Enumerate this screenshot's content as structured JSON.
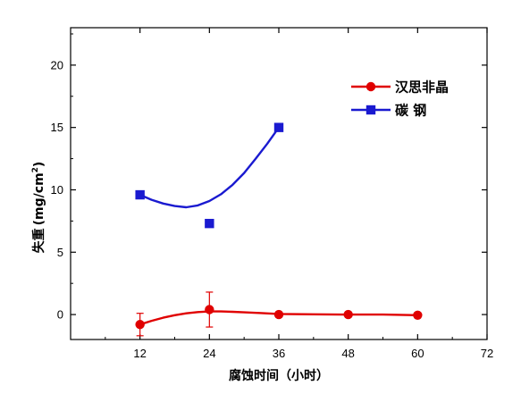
{
  "chart_data": {
    "type": "scatter",
    "title": "",
    "xlabel": "腐蚀时间（小时）",
    "ylabel_main": "失重",
    "ylabel_unit": "(mg/cm",
    "ylabel_sup": "2",
    "ylabel_close": ")",
    "xlim": [
      0,
      72
    ],
    "ylim": [
      -2,
      23
    ],
    "xticks": [
      12,
      24,
      36,
      48,
      60,
      72
    ],
    "yticks": [
      0,
      5,
      10,
      15,
      20
    ],
    "legend_position": "top-right",
    "grid": false,
    "series": [
      {
        "name": "汉思非晶",
        "color": "#e00000",
        "marker": "circle",
        "points": [
          {
            "x": 12,
            "y": -0.8,
            "err": 0.9
          },
          {
            "x": 24,
            "y": 0.4,
            "err": 1.4
          },
          {
            "x": 36,
            "y": 0.0
          },
          {
            "x": 48,
            "y": 0.0
          },
          {
            "x": 60,
            "y": -0.05
          }
        ],
        "curve": [
          [
            12,
            -0.8
          ],
          [
            14,
            -0.5
          ],
          [
            16,
            -0.25
          ],
          [
            18,
            -0.05
          ],
          [
            20,
            0.1
          ],
          [
            22,
            0.2
          ],
          [
            24,
            0.25
          ],
          [
            26,
            0.25
          ],
          [
            28,
            0.22
          ],
          [
            30,
            0.18
          ],
          [
            33,
            0.12
          ],
          [
            36,
            0.05
          ],
          [
            42,
            0.02
          ],
          [
            48,
            0.0
          ],
          [
            54,
            0.0
          ],
          [
            60,
            -0.05
          ]
        ]
      },
      {
        "name": "碳 钢",
        "color": "#1a1ad0",
        "marker": "square",
        "points": [
          {
            "x": 12,
            "y": 9.6
          },
          {
            "x": 24,
            "y": 7.3
          },
          {
            "x": 36,
            "y": 15.0
          }
        ],
        "curve": [
          [
            12,
            9.6
          ],
          [
            14,
            9.2
          ],
          [
            16,
            8.9
          ],
          [
            18,
            8.7
          ],
          [
            20,
            8.6
          ],
          [
            22,
            8.75
          ],
          [
            24,
            9.1
          ],
          [
            26,
            9.65
          ],
          [
            28,
            10.4
          ],
          [
            30,
            11.35
          ],
          [
            32,
            12.5
          ],
          [
            34,
            13.7
          ],
          [
            36,
            15.0
          ]
        ]
      }
    ]
  }
}
